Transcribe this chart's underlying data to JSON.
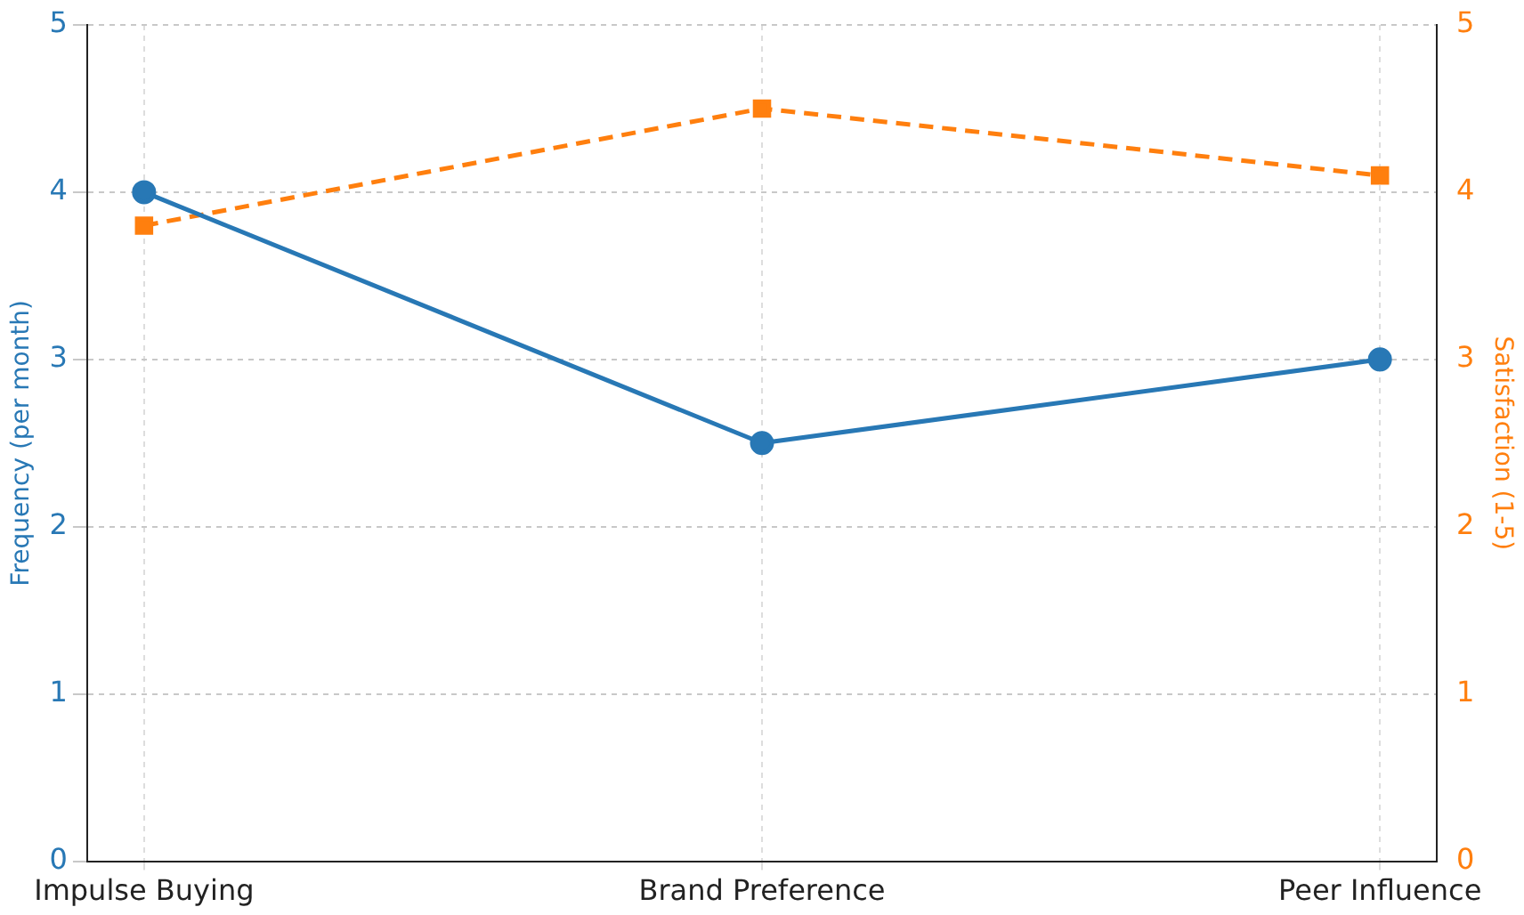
{
  "chart_data": {
    "type": "line",
    "categories": [
      "Impulse Buying",
      "Brand Preference",
      "Peer Influence"
    ],
    "ylabel": "Frequency (per month)",
    "y2label": "Satisfaction (1-5)",
    "ylim": [
      0,
      5
    ],
    "yticks": [
      0,
      1,
      2,
      3,
      4,
      5
    ],
    "y2lim": [
      0,
      5
    ],
    "y2ticks": [
      0,
      1,
      2,
      3,
      4,
      5
    ],
    "grid": true,
    "legend": false,
    "series": [
      {
        "color": "#2878b5",
        "values": [
          4,
          2.5,
          3
        ],
        "marker": "circle",
        "line_style": "solid"
      },
      {
        "color": "#ff7f0e",
        "values": [
          3.8,
          4.5,
          4.1
        ],
        "axis": "y2",
        "marker": "square",
        "line_style": "dashed"
      }
    ]
  }
}
